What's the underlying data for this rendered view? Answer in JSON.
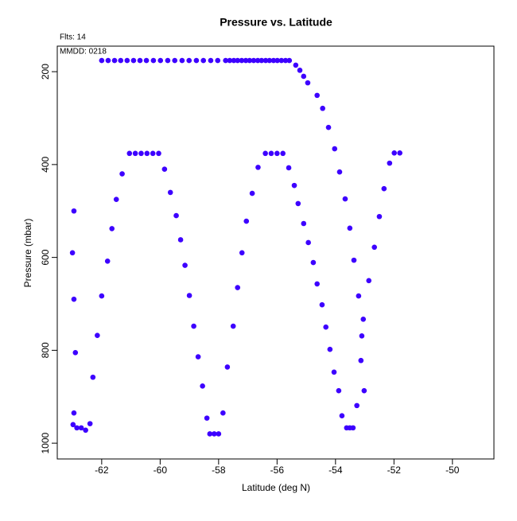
{
  "chart_data": {
    "type": "scatter",
    "title": "Pressure vs. Latitude",
    "annotations": [
      "Flts: 14",
      "MMDD: 0218"
    ],
    "x_label": "Latitude (deg N)",
    "y_label": "Pressure (mbar)",
    "xlim": [
      -63.52,
      -48.58
    ],
    "ylim": [
      1034,
      145
    ],
    "xticks": [
      -62,
      -60,
      -58,
      -56,
      -54,
      -52,
      -50
    ],
    "yticks": [
      200,
      400,
      600,
      800,
      1000
    ],
    "color": "#3d00ff",
    "x": [
      -62.0,
      -61.78,
      -61.56,
      -61.35,
      -61.13,
      -60.91,
      -60.69,
      -60.47,
      -60.23,
      -59.99,
      -59.74,
      -59.5,
      -59.25,
      -59.01,
      -58.76,
      -58.52,
      -58.27,
      -58.03,
      -57.76,
      -57.62,
      -57.48,
      -57.35,
      -57.21,
      -57.07,
      -56.94,
      -56.8,
      -56.66,
      -56.53,
      -56.39,
      -56.26,
      -56.12,
      -55.99,
      -55.85,
      -55.71,
      -55.58,
      -55.36,
      -55.22,
      -55.09,
      -54.95,
      -54.63,
      -54.44,
      -54.24,
      -54.03,
      -53.86,
      -53.67,
      -53.51,
      -53.37,
      -53.21,
      -53.05,
      -53.1,
      -53.13,
      -53.02,
      -53.27,
      -52.86,
      -52.67,
      -52.5,
      -52.34,
      -52.15,
      -51.99,
      -51.8,
      -55.6,
      -55.41,
      -55.28,
      -55.09,
      -54.93,
      -54.76,
      -54.63,
      -54.46,
      -54.33,
      -54.19,
      -54.05,
      -53.89,
      -53.78,
      -53.62,
      -53.51,
      -53.4,
      -63.0,
      -62.95,
      -62.95,
      -62.9,
      -62.95,
      -62.98,
      -62.85,
      -62.7,
      -62.55,
      -62.4,
      -62.3,
      -62.15,
      -62.0,
      -61.8,
      -61.65,
      -61.5,
      -61.3,
      -61.05,
      -60.85,
      -60.65,
      -60.45,
      -60.25,
      -60.05,
      -59.85,
      -59.65,
      -59.45,
      -59.3,
      -59.15,
      -59.0,
      -58.85,
      -58.7,
      -58.55,
      -58.4,
      -58.3,
      -58.15,
      -58.0,
      -57.85,
      -57.7,
      -57.5,
      -57.35,
      -57.2,
      -57.05,
      -56.85,
      -56.65,
      -56.4,
      -56.2,
      -56.0,
      -55.8
    ],
    "values": [
      176,
      176,
      176,
      176,
      176,
      176,
      176,
      176,
      176,
      176,
      176,
      176,
      176,
      176,
      176,
      176,
      176,
      176,
      176,
      176,
      176,
      176,
      176,
      176,
      176,
      176,
      176,
      176,
      176,
      176,
      176,
      176,
      176,
      176,
      176,
      186,
      197,
      210,
      224,
      251,
      279,
      320,
      366,
      416,
      474,
      537,
      606,
      683,
      733,
      769,
      822,
      887,
      919,
      650,
      578,
      512,
      452,
      397,
      375,
      375,
      407,
      445,
      484,
      527,
      568,
      611,
      657,
      702,
      750,
      798,
      847,
      887,
      941,
      967,
      967,
      967,
      590,
      690,
      500,
      805,
      935,
      960,
      967,
      967,
      972,
      958,
      858,
      768,
      683,
      608,
      538,
      475,
      420,
      376,
      376,
      376,
      376,
      376,
      376,
      410,
      460,
      510,
      562,
      617,
      682,
      748,
      814,
      877,
      946,
      980,
      980,
      980,
      935,
      836,
      748,
      665,
      590,
      522,
      462,
      406,
      376,
      376,
      376,
      376
    ]
  }
}
